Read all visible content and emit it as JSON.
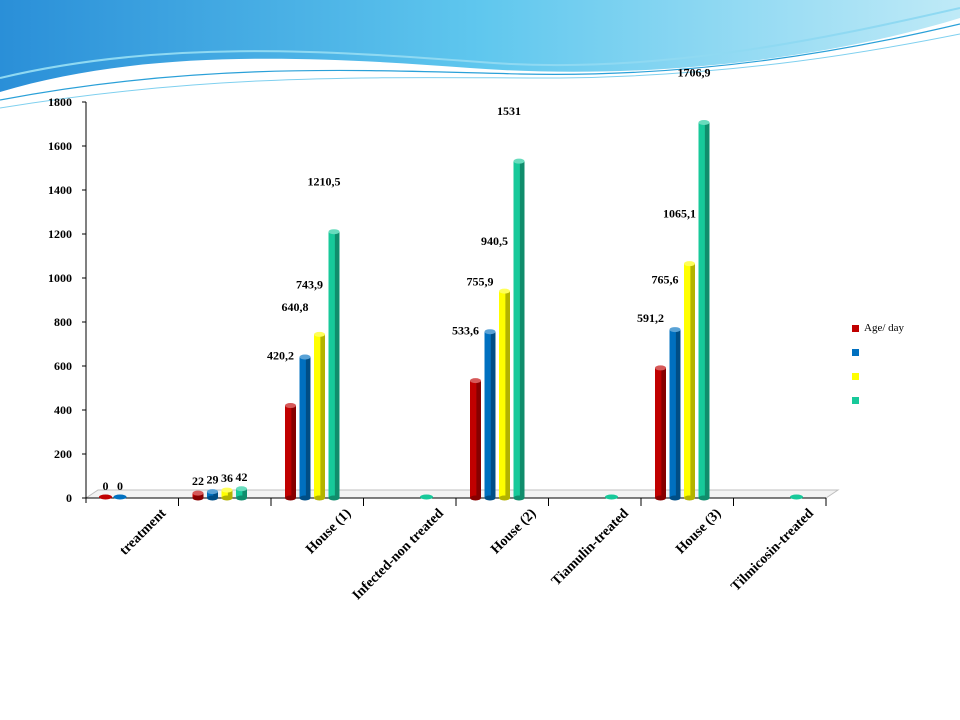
{
  "chart_data": {
    "type": "bar",
    "title": "",
    "xlabel": "",
    "ylabel": "",
    "ylim": [
      0,
      1800
    ],
    "y_ticks": [
      "0",
      "200",
      "400",
      "600",
      "800",
      "1000",
      "1200",
      "1400",
      "1600",
      "1800"
    ],
    "categories": [
      "treatment",
      "",
      "House (1)",
      "Infected-non treated",
      "House (2)",
      "Tiamulin-treated",
      "House (3)",
      "Tilmicosin-treated"
    ],
    "series": [
      {
        "name": "Age/ day",
        "color": "#c00000",
        "values": [
          0,
          22,
          420.2,
          null,
          533.6,
          null,
          591.2,
          null
        ],
        "labels": [
          "0",
          "22",
          "420,2",
          "",
          "533,6",
          "",
          "591,2",
          ""
        ]
      },
      {
        "color": "#0070c0",
        "values": [
          0,
          29,
          640.8,
          null,
          755.9,
          null,
          765.6,
          null
        ],
        "labels": [
          "0",
          "29",
          "640,8",
          "",
          "755,9",
          "",
          "765,6",
          ""
        ]
      },
      {
        "color": "#ffff00",
        "values": [
          null,
          36,
          743.9,
          null,
          940.5,
          null,
          1065.1,
          null
        ],
        "labels": [
          "",
          "36",
          "743,9",
          "",
          "940,5",
          "",
          "1065,1",
          ""
        ]
      },
      {
        "color": "#17c99a",
        "values": [
          null,
          42,
          1210.5,
          0,
          1531,
          0,
          1706.9,
          0
        ],
        "labels": [
          "",
          "42",
          "1210,5",
          "",
          "1531",
          "",
          "1706,9",
          ""
        ]
      }
    ],
    "grid": false,
    "legend_position": "right",
    "style": "3d cylinder"
  }
}
